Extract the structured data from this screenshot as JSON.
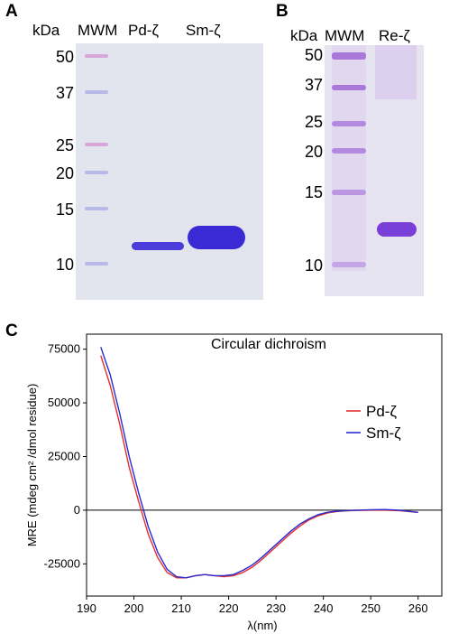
{
  "panel_a": {
    "letter": "A",
    "unit_label": "kDa",
    "lane_labels": [
      "MWM",
      "Pd-ζ",
      "Sm-ζ"
    ],
    "marker_values": [
      "50",
      "37",
      "25",
      "20",
      "15",
      "10"
    ]
  },
  "panel_b": {
    "letter": "B",
    "unit_label": "kDa",
    "lane_labels": [
      "MWM",
      "Re-ζ"
    ],
    "marker_values": [
      "50",
      "37",
      "25",
      "20",
      "15",
      "10"
    ]
  },
  "panel_c": {
    "letter": "C"
  },
  "colors": {
    "gel_background": "#e3e5ee",
    "marker_blue": "#b8b9e6",
    "marker_pink": "#d9a6d9",
    "protein_band": "#3a2ad6",
    "series_red": "#e03030",
    "series_blue": "#2a2ad0"
  },
  "chart_data": {
    "type": "line",
    "title": "Circular dichroism",
    "xlabel": "λ(nm)",
    "ylabel": "MRE (mdeg cm² /dmol residue)",
    "xlim": [
      190,
      265
    ],
    "ylim": [
      -40000,
      82000
    ],
    "x_ticks": [
      190,
      200,
      210,
      220,
      230,
      240,
      250,
      260
    ],
    "y_ticks": [
      -25000,
      0,
      25000,
      50000,
      75000
    ],
    "y_tick_labels": [
      "-25000",
      "0",
      "25000",
      "50000",
      "75000"
    ],
    "zero_line": true,
    "legend_position": "right",
    "series": [
      {
        "name": "Pd-ζ",
        "color": "#e03030",
        "x": [
          193,
          195,
          197,
          199,
          201,
          203,
          205,
          207,
          209,
          211,
          213,
          215,
          217,
          219,
          221,
          223,
          225,
          227,
          229,
          231,
          233,
          235,
          237,
          239,
          241,
          243,
          245,
          247,
          250,
          253,
          256,
          260
        ],
        "y": [
          72000,
          58000,
          40000,
          20000,
          4000,
          -11000,
          -22000,
          -29000,
          -31500,
          -31500,
          -30500,
          -30000,
          -30500,
          -31000,
          -30500,
          -29000,
          -26500,
          -23000,
          -19000,
          -15000,
          -11000,
          -7500,
          -4500,
          -2500,
          -1200,
          -600,
          -300,
          -100,
          0,
          0,
          -200,
          -1000
        ]
      },
      {
        "name": "Sm-ζ",
        "color": "#2a2ad0",
        "x": [
          193,
          195,
          197,
          199,
          201,
          203,
          205,
          207,
          209,
          211,
          213,
          215,
          217,
          219,
          221,
          223,
          225,
          227,
          229,
          231,
          233,
          235,
          237,
          239,
          241,
          243,
          245,
          247,
          250,
          253,
          256,
          260
        ],
        "y": [
          76000,
          63000,
          45000,
          25000,
          8000,
          -7500,
          -19500,
          -27500,
          -31000,
          -31500,
          -30500,
          -30000,
          -30500,
          -30500,
          -30000,
          -28000,
          -25500,
          -22000,
          -18000,
          -14000,
          -10000,
          -6500,
          -4000,
          -2000,
          -900,
          -400,
          -200,
          0,
          200,
          300,
          0,
          -1000
        ]
      }
    ]
  }
}
